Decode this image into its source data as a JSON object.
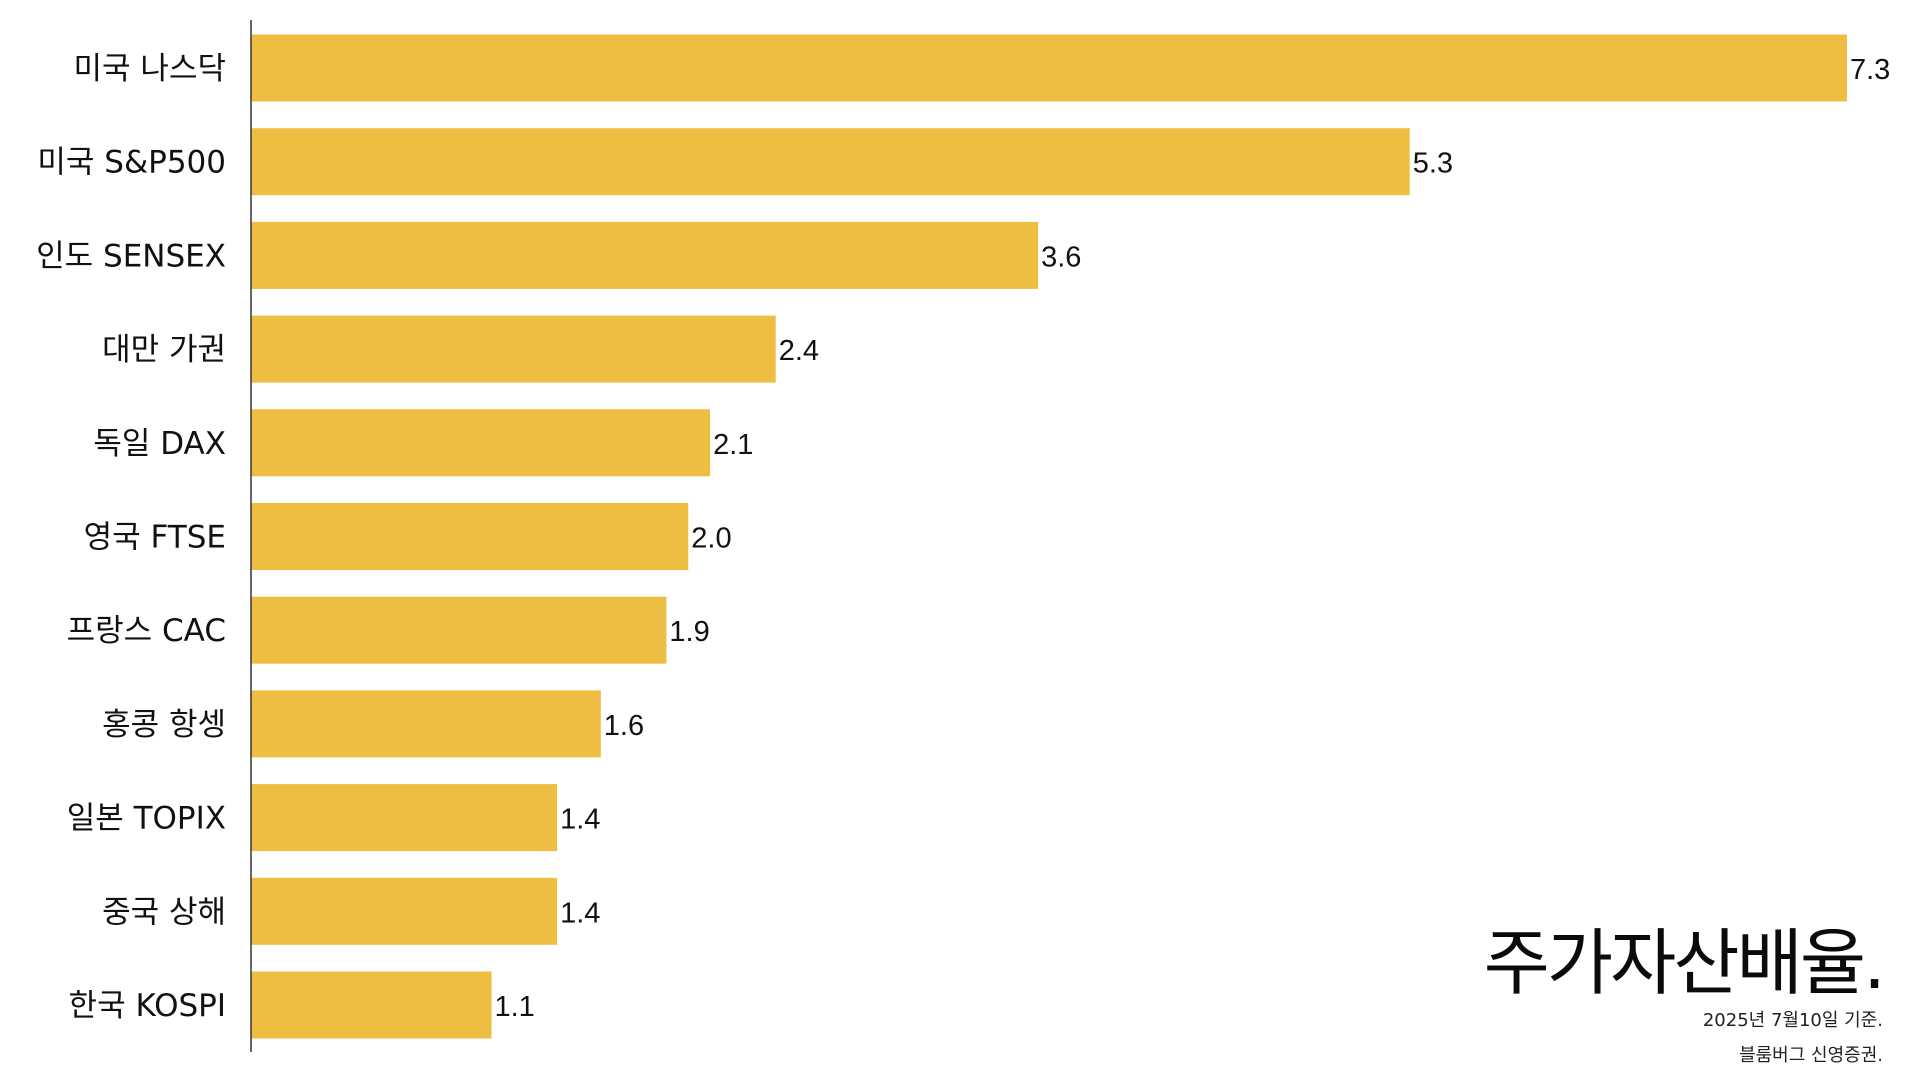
{
  "chart_data": {
    "type": "bar",
    "orientation": "horizontal",
    "title": "주가자산배율.",
    "xlabel": "",
    "ylabel": "",
    "xlim": [
      0,
      7.3
    ],
    "grid": false,
    "categories": [
      "미국 나스닥",
      "미국 S&P500",
      "인도 SENSEX",
      "대만 가권",
      "독일 DAX",
      "영국 FTSE",
      "프랑스 CAC",
      "홍콩 항셍",
      "일본 TOPIX",
      "중국 상해",
      "한국 KOSPI"
    ],
    "values": [
      7.3,
      5.3,
      3.6,
      2.4,
      2.1,
      2.0,
      1.9,
      1.6,
      1.4,
      1.4,
      1.1
    ],
    "value_labels": [
      "7.3",
      "5.3",
      "3.6",
      "2.4",
      "2.1",
      "2.0",
      "1.9",
      "1.6",
      "1.4",
      "1.4",
      "1.1"
    ],
    "bar_color": "#EEBE42",
    "axis_color": "#333333"
  },
  "notes": {
    "date": "2025년 7월10일 기준.",
    "source": "블룸버그 신영증권."
  }
}
